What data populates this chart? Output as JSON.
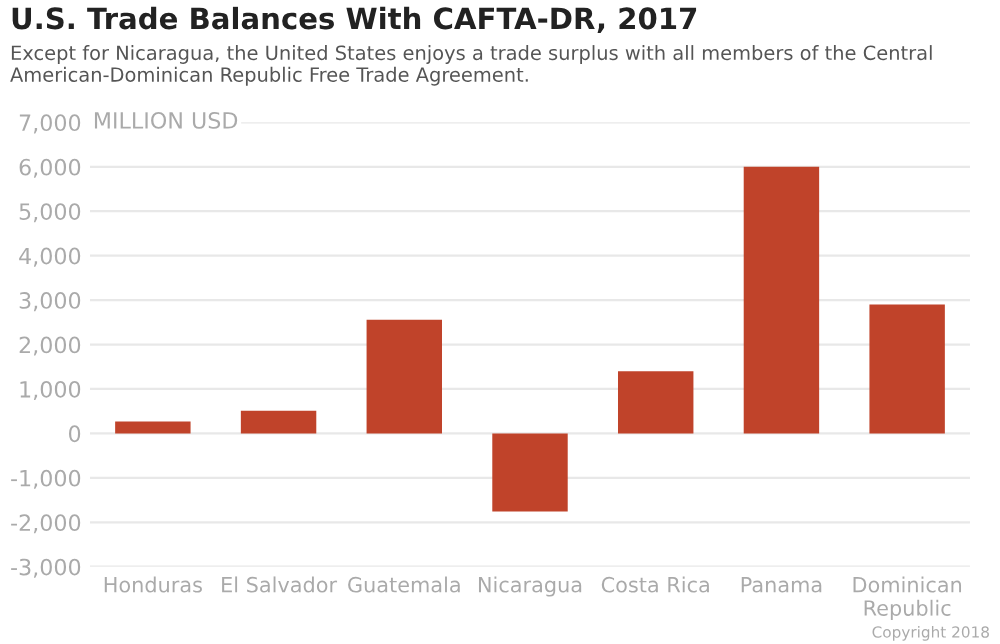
{
  "chart_data": {
    "type": "bar",
    "title": "U.S. Trade Balances With CAFTA-DR, 2017",
    "subtitle": "Except for Nicaragua, the United States enjoys a trade surplus with all members of the Central American-Dominican Republic Free Trade Agreement.",
    "categories": [
      "Honduras",
      "El Salvador",
      "Guatemala",
      "Nicaragua",
      "Costa Rica",
      "Panama",
      "Dominican\nRepublic"
    ],
    "values": [
      270,
      510,
      2560,
      -1760,
      1400,
      6000,
      2900
    ],
    "color": "#c0432a",
    "ylim": [
      -3000,
      7000
    ],
    "yticks": [
      {
        "value": -3000,
        "label": "-3,000"
      },
      {
        "value": -2000,
        "label": "-2,000"
      },
      {
        "value": -1000,
        "label": "-1,000"
      },
      0,
      {
        "value": 1000,
        "label": "1,000"
      },
      {
        "value": 2000,
        "label": "2,000"
      },
      {
        "value": 3000,
        "label": "3,000"
      },
      {
        "value": 4000,
        "label": "4,000"
      },
      {
        "value": 5000,
        "label": "5,000"
      },
      {
        "value": 6000,
        "label": "6,000"
      },
      {
        "value": 7000,
        "label": "7,000"
      }
    ],
    "ylabel": "MILLION USD",
    "grid": "y",
    "annotations": [
      "Copyright 2018"
    ]
  }
}
